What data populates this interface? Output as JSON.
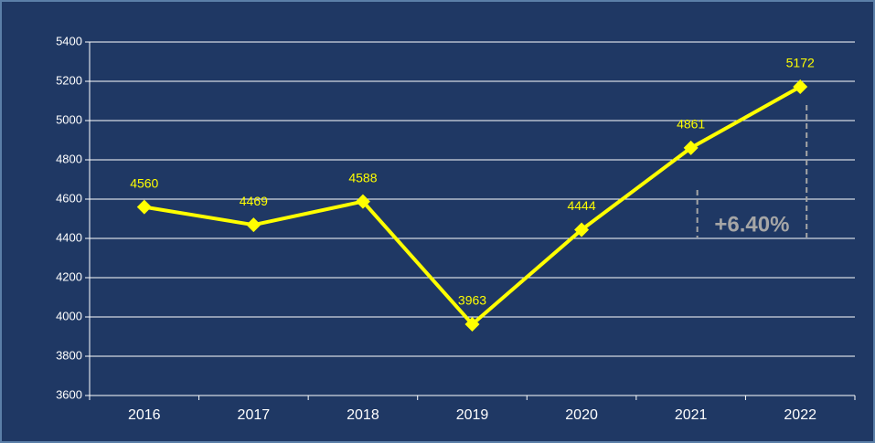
{
  "chart_data": {
    "type": "line",
    "categories": [
      "2016",
      "2017",
      "2018",
      "2019",
      "2020",
      "2021",
      "2022"
    ],
    "values": [
      4560,
      4469,
      4588,
      3963,
      4444,
      4861,
      5172
    ],
    "color": "#ffff00",
    "ylim": [
      3600,
      5400
    ],
    "yticks": [
      3600,
      3800,
      4000,
      4200,
      4400,
      4600,
      4800,
      5000,
      5200,
      5400
    ],
    "grid": true,
    "annotation": "+6.40%"
  }
}
